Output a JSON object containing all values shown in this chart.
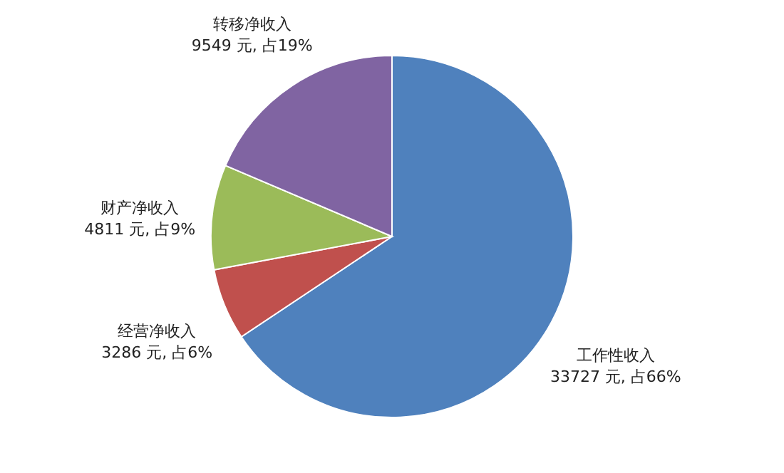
{
  "chart_data": {
    "type": "pie",
    "categories": [
      "工作性收入",
      "经营净收入",
      "财产净收入",
      "转移净收入"
    ],
    "values": [
      33727,
      3286,
      4811,
      9549
    ],
    "colors": [
      "#4f81bd",
      "#c0504d",
      "#9bbb59",
      "#8064a2"
    ],
    "value_labels": [
      "33727 元, 占66%",
      "3286 元, 占6%",
      "4811 元, 占9%",
      "9549 元, 占19%"
    ],
    "legend": false
  }
}
